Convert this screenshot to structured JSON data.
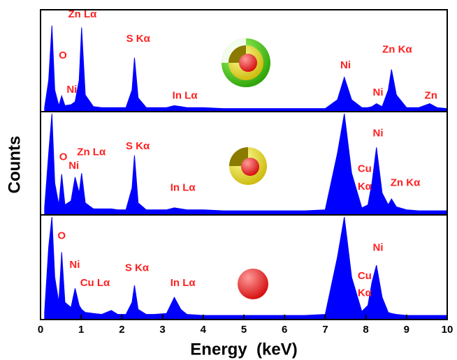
{
  "chart_data": [
    {
      "type": "area",
      "color": "#0000ff",
      "ylim": [
        0,
        100
      ],
      "x": [
        0.1,
        0.2,
        0.28,
        0.35,
        0.45,
        0.52,
        0.6,
        0.75,
        0.85,
        0.95,
        1.01,
        1.1,
        1.3,
        1.5,
        1.74,
        1.9,
        2.1,
        2.25,
        2.31,
        2.4,
        2.6,
        2.8,
        3.1,
        3.29,
        3.45,
        3.6,
        4,
        4.5,
        5,
        5.5,
        6,
        6.5,
        7,
        7.3,
        7.47,
        7.65,
        7.9,
        8.05,
        8.15,
        8.26,
        8.4,
        8.55,
        8.63,
        8.75,
        9,
        9.3,
        9.57,
        9.75,
        10
      ],
      "values": [
        2,
        30,
        86,
        20,
        4,
        14,
        4,
        5,
        8,
        30,
        84,
        15,
        3,
        2,
        2,
        2,
        2,
        20,
        53,
        12,
        2,
        2,
        2,
        4,
        3,
        2,
        2,
        1,
        1,
        1,
        1,
        1,
        1,
        10,
        33,
        10,
        2,
        2,
        3,
        6,
        3,
        20,
        41,
        15,
        2,
        2,
        6,
        2,
        1
      ],
      "annotations": [
        {
          "text": "Zn Lα",
          "x": 1.03,
          "y": 97
        },
        {
          "text": "O",
          "x": 0.55,
          "y": 55
        },
        {
          "text": "Ni",
          "x": 0.77,
          "y": 20
        },
        {
          "text": "S Kα",
          "x": 2.4,
          "y": 72
        },
        {
          "text": "In Lα",
          "x": 3.55,
          "y": 14
        },
        {
          "text": "Ni",
          "x": 7.5,
          "y": 45
        },
        {
          "text": "Zn Kα",
          "x": 8.77,
          "y": 61
        },
        {
          "text": "Ni",
          "x": 8.3,
          "y": 17
        },
        {
          "text": "Zn",
          "x": 9.6,
          "y": 14
        }
      ]
    },
    {
      "type": "area",
      "color": "#0000ff",
      "ylim": [
        0,
        100
      ],
      "ylabel": "Counts",
      "x": [
        0.1,
        0.2,
        0.28,
        0.35,
        0.45,
        0.52,
        0.6,
        0.75,
        0.85,
        0.95,
        1.01,
        1.1,
        1.3,
        1.5,
        1.74,
        1.9,
        2.1,
        2.25,
        2.31,
        2.4,
        2.6,
        2.8,
        3.1,
        3.29,
        3.45,
        3.6,
        4,
        4.5,
        5,
        5.5,
        6,
        6.5,
        7,
        7.3,
        7.47,
        7.65,
        7.9,
        8.05,
        8.15,
        8.26,
        8.4,
        8.55,
        8.63,
        8.75,
        9,
        9.3,
        9.57,
        9.75,
        10
      ],
      "values": [
        5,
        60,
        100,
        30,
        8,
        39,
        8,
        12,
        36,
        20,
        40,
        10,
        4,
        4,
        4,
        3,
        3,
        25,
        58,
        10,
        3,
        3,
        3,
        5,
        4,
        3,
        3,
        2,
        2,
        2,
        2,
        2,
        3,
        60,
        100,
        40,
        5,
        8,
        30,
        66,
        20,
        8,
        14,
        6,
        3,
        2,
        2,
        2,
        2
      ],
      "annotations": [
        {
          "text": "O",
          "x": 0.56,
          "y": 56
        },
        {
          "text": "Zn Lα",
          "x": 1.25,
          "y": 61
        },
        {
          "text": "Ni",
          "x": 0.82,
          "y": 47
        },
        {
          "text": "S Kα",
          "x": 2.39,
          "y": 67
        },
        {
          "text": "In Lα",
          "x": 3.5,
          "y": 25
        },
        {
          "text": "Cu",
          "x": 7.97,
          "y": 44
        },
        {
          "text": "Kα",
          "x": 7.97,
          "y": 26
        },
        {
          "text": "Ni",
          "x": 8.3,
          "y": 80
        },
        {
          "text": "Zn Kα",
          "x": 8.97,
          "y": 30
        }
      ]
    },
    {
      "type": "area",
      "color": "#0000ff",
      "ylim": [
        0,
        100
      ],
      "x": [
        0.1,
        0.2,
        0.28,
        0.35,
        0.45,
        0.52,
        0.6,
        0.75,
        0.85,
        0.95,
        1.01,
        1.1,
        1.3,
        1.5,
        1.74,
        1.9,
        2.1,
        2.25,
        2.31,
        2.4,
        2.6,
        2.8,
        3.1,
        3.29,
        3.45,
        3.6,
        4,
        4.5,
        5,
        5.5,
        6,
        6.5,
        7,
        7.3,
        7.47,
        7.65,
        7.9,
        8.05,
        8.15,
        8.26,
        8.4,
        8.55,
        8.63,
        8.75,
        9,
        9.3,
        9.57,
        9.75,
        10
      ],
      "values": [
        5,
        70,
        100,
        40,
        15,
        65,
        15,
        10,
        29,
        12,
        8,
        5,
        4,
        3,
        7,
        3,
        3,
        15,
        32,
        8,
        3,
        3,
        4,
        20,
        8,
        3,
        2,
        2,
        2,
        2,
        2,
        2,
        3,
        60,
        100,
        40,
        6,
        12,
        35,
        52,
        20,
        5,
        4,
        3,
        2,
        2,
        2,
        2,
        2
      ],
      "xlim": [
        0,
        10
      ],
      "xticks": [
        0,
        1,
        2,
        3,
        4,
        5,
        6,
        7,
        8,
        9,
        10
      ],
      "xlabel": "Energy  (keV)",
      "annotations": [
        {
          "text": "O",
          "x": 0.52,
          "y": 81
        },
        {
          "text": "Ni",
          "x": 0.84,
          "y": 52
        },
        {
          "text": "Cu Lα",
          "x": 1.34,
          "y": 34
        },
        {
          "text": "S Kα",
          "x": 2.37,
          "y": 49
        },
        {
          "text": "In Lα",
          "x": 3.5,
          "y": 34
        },
        {
          "text": "Ni",
          "x": 8.3,
          "y": 69
        },
        {
          "text": "Cu",
          "x": 7.97,
          "y": 41
        },
        {
          "text": "Kα",
          "x": 7.97,
          "y": 24
        }
      ]
    }
  ]
}
